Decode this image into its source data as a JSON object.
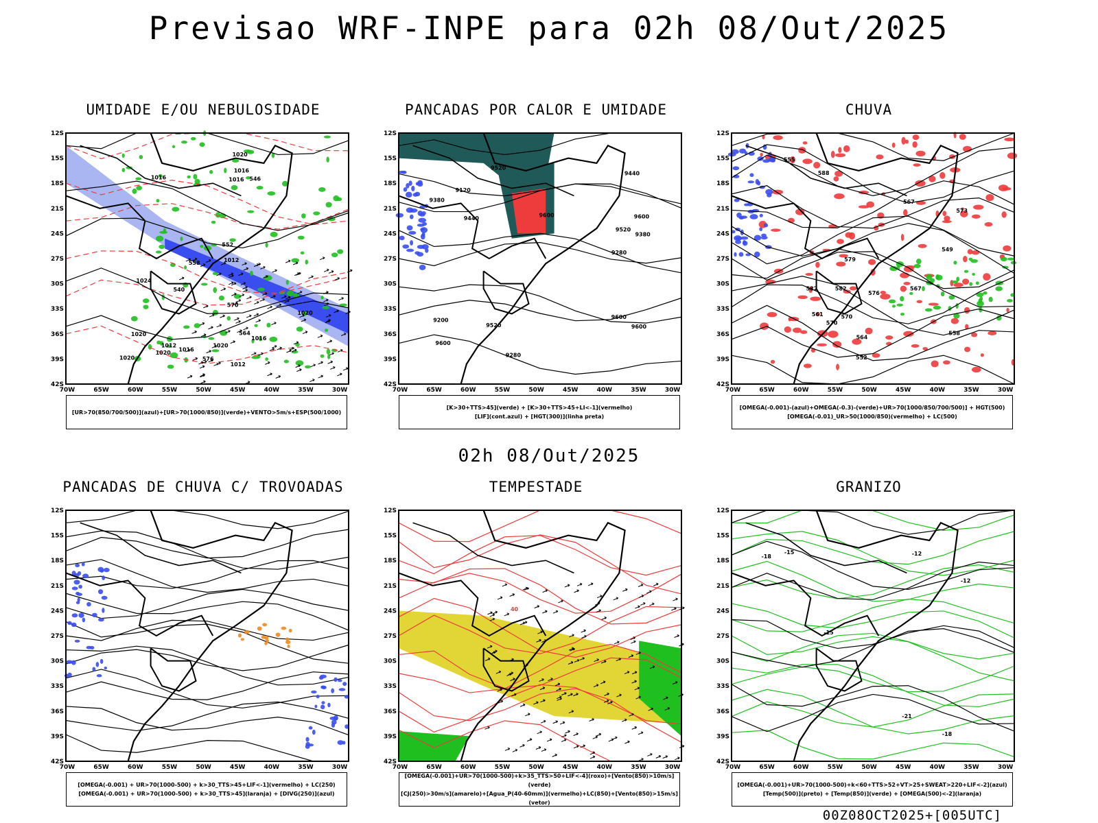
{
  "title": "Previsao WRF-INPE  para 02h 08/Out/2025",
  "mid_date": "02h 08/Out/2025",
  "footer": "00Z08OCT2025+[005UTC]",
  "lat_labels": [
    "12S",
    "15S",
    "18S",
    "21S",
    "24S",
    "27S",
    "30S",
    "33S",
    "36S",
    "39S",
    "42S"
  ],
  "lon_labels": [
    "70W",
    "65W",
    "60W",
    "55W",
    "50W",
    "45W",
    "40W",
    "35W",
    "30W"
  ],
  "colors": {
    "blue": "#3a4ef0",
    "lightblue": "#a9b6f2",
    "green": "#1fbf1f",
    "red": "#ee3b3b",
    "orange": "#f08a1e",
    "yellow": "#e2d636",
    "teal": "#1f5a58"
  },
  "panels": [
    {
      "title": "UMIDADE E/OU NEBULOSIDADE",
      "legend": [
        "[UR>70(850/700/500)](azul)+[UR>70(1000/850)](verde)+VENTO>5m/s+ESP(500/1000)"
      ],
      "contour_labels": [
        "1012",
        "1012",
        "1012",
        "1016",
        "1016",
        "1016",
        "1016",
        "1020",
        "1020",
        "1020",
        "1020",
        "1024",
        "1020",
        "1020",
        "1016",
        "570",
        "576",
        "564",
        "558",
        "552",
        "546",
        "540"
      ]
    },
    {
      "title": "PANCADAS POR CALOR E UMIDADE",
      "legend": [
        "[K>30+TTS>45](verde) + [K>30+TTS>45+LI<-1](vermelho)",
        "[LIF](cont.azul) + [HGT(300)](linha preta)"
      ],
      "contour_labels": [
        "9600",
        "9600",
        "9600",
        "9600",
        "9600",
        "9520",
        "9520",
        "9520",
        "9440",
        "9440",
        "9380",
        "9380",
        "9280",
        "9280",
        "9200",
        "9120"
      ]
    },
    {
      "title": "CHUVA",
      "legend": [
        "[OMEGA(-0.001)-(azul)+OMEGA(-0.3)-(verde)+UR>70(1000/850/700/500)] + HGT(500)",
        "[OMEGA(-0.01)_UR>50(1000/850)(vermelho) + LC(500)"
      ],
      "contour_labels": [
        "582",
        "588",
        "582",
        "579",
        "576",
        "573",
        "570",
        "570",
        "567",
        "564",
        "561",
        "558",
        "555",
        "552",
        "549",
        "567"
      ]
    },
    {
      "title": "PANCADAS DE CHUVA C/ TROVOADAS",
      "legend": [
        "[OMEGA(-0.001) + UR>70(1000-500) + k>30_TTS>45+LIF<-1](vermelho) + LC(250)",
        "[OMEGA(-0.001) + UR>70(1000-500) + k>30_TTS>45](laranja) + [DIVG(250)](azul)"
      ],
      "contour_labels": []
    },
    {
      "title": "TEMPESTADE",
      "legend": [
        "[OMEGA(-0.001)+UR>70(1000-500)+k>35_TTS>50+LIF<-4](roxo)+[Vento(850)>10m/s](verde)",
        "[CJ(250)>30m/s](amarelo)+[Agua_P(40-60mm)](vermelho)+LC(850)+[Vento(850)>15m/s](vetor)"
      ],
      "contour_labels": [
        "40"
      ]
    },
    {
      "title": "GRANIZO",
      "legend": [
        "[OMEGA(-0.001)+UR>70(1000-500)+k<60+TTS>52+VT>25+SWEAT>220+LIF<-2](azul)",
        "[Temp(500)](preto) + [Temp(850)](verde) + [OMEGA(500)<-2](laranja)"
      ],
      "contour_labels": [
        "-12",
        "-15",
        "-15",
        "-18",
        "-18",
        "-21",
        "-12"
      ]
    }
  ]
}
